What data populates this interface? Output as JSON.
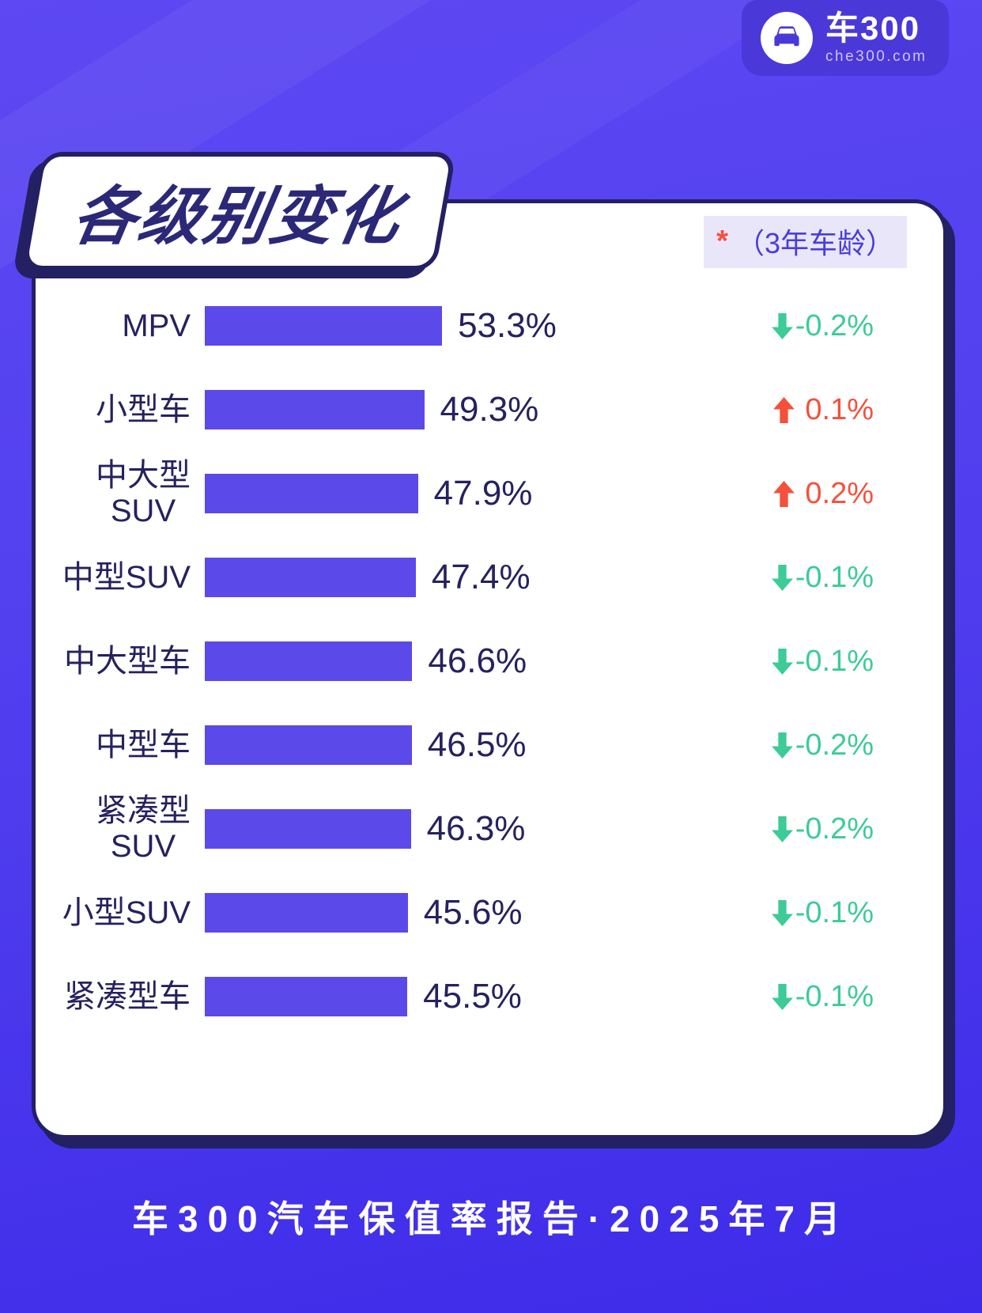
{
  "logo": {
    "brand": "车300",
    "domain": "che300.com",
    "icon": "car-icon"
  },
  "header": {
    "title": "各级别变化",
    "note_asterisk": "*",
    "note_text": "（3年车龄）"
  },
  "chart_data": {
    "type": "bar",
    "orientation": "horizontal",
    "title": "各级别变化",
    "note": "*（3年车龄）",
    "unit": "%",
    "categories": [
      "MPV",
      "小型车",
      "中大型SUV",
      "中型SUV",
      "中大型车",
      "中型车",
      "紧凑型SUV",
      "小型SUV",
      "紧凑型车"
    ],
    "values": [
      53.3,
      49.3,
      47.9,
      47.4,
      46.6,
      46.5,
      46.3,
      45.6,
      45.5
    ],
    "changes": [
      -0.2,
      0.1,
      0.2,
      -0.1,
      -0.1,
      -0.2,
      -0.2,
      -0.1,
      -0.1
    ],
    "bar_color": "#5c49ea",
    "up_color": "#f5503c",
    "down_color": "#3dcb97",
    "text_color": "#26215f"
  },
  "rows": [
    {
      "label_lines": [
        "MPV"
      ],
      "value": 53.3,
      "value_text": "53.3%",
      "change_text": "-0.2%",
      "direction": "down"
    },
    {
      "label_lines": [
        "小型车"
      ],
      "value": 49.3,
      "value_text": "49.3%",
      "change_text": "0.1%",
      "direction": "up"
    },
    {
      "label_lines": [
        "中大型",
        "SUV"
      ],
      "value": 47.9,
      "value_text": "47.9%",
      "change_text": "0.2%",
      "direction": "up"
    },
    {
      "label_lines": [
        "中型SUV"
      ],
      "value": 47.4,
      "value_text": "47.4%",
      "change_text": "-0.1%",
      "direction": "down"
    },
    {
      "label_lines": [
        "中大型车"
      ],
      "value": 46.6,
      "value_text": "46.6%",
      "change_text": "-0.1%",
      "direction": "down"
    },
    {
      "label_lines": [
        "中型车"
      ],
      "value": 46.5,
      "value_text": "46.5%",
      "change_text": "-0.2%",
      "direction": "down"
    },
    {
      "label_lines": [
        "紧凑型",
        "SUV"
      ],
      "value": 46.3,
      "value_text": "46.3%",
      "change_text": "-0.2%",
      "direction": "down"
    },
    {
      "label_lines": [
        "小型SUV"
      ],
      "value": 45.6,
      "value_text": "45.6%",
      "change_text": "-0.1%",
      "direction": "down"
    },
    {
      "label_lines": [
        "紧凑型车"
      ],
      "value": 45.5,
      "value_text": "45.5%",
      "change_text": "-0.1%",
      "direction": "down"
    }
  ],
  "footer": {
    "text": "车300汽车保值率报告·2025年7月"
  },
  "colors": {
    "background_top": "#5d48f3",
    "background_bottom": "#3e2be9",
    "card_border": "#232064",
    "logo_background": "#4a38d9",
    "note_background": "#e9e6fa",
    "note_text": "#4a3ed8"
  }
}
